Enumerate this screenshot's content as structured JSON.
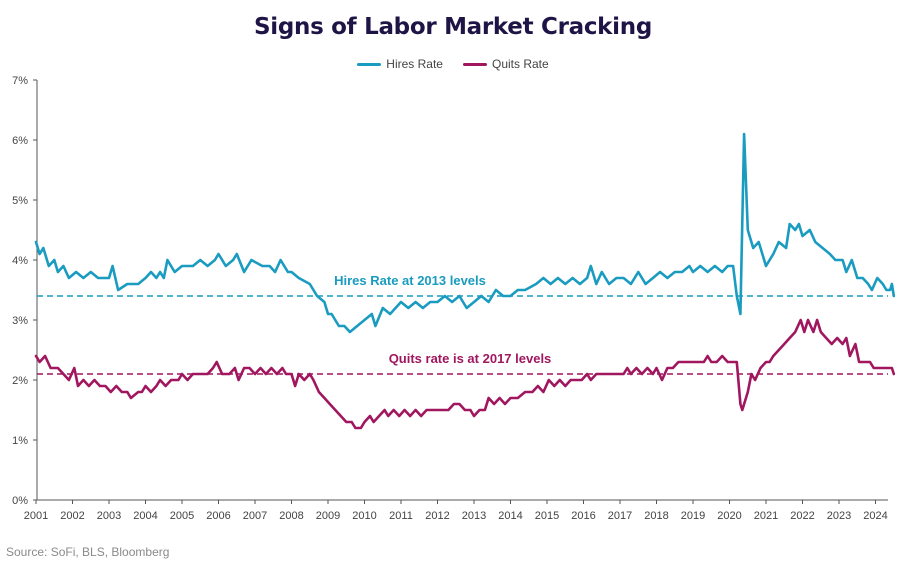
{
  "title": "Signs of Labor Market Cracking",
  "source": "Source: SoFi, BLS, Bloomberg",
  "colors": {
    "hires": "#1a9bc0",
    "quits": "#a0175f",
    "axis": "#555555"
  },
  "chart_data": {
    "type": "line",
    "title": "Signs of Labor Market Cracking",
    "xlabel": "",
    "ylabel": "",
    "ylim": [
      0,
      7
    ],
    "xlim": [
      2001,
      2024.5
    ],
    "y_ticks": [
      "0%",
      "1%",
      "2%",
      "3%",
      "4%",
      "5%",
      "6%",
      "7%"
    ],
    "x_ticks": [
      "2001",
      "2002",
      "2003",
      "2004",
      "2005",
      "2006",
      "2007",
      "2008",
      "2009",
      "2010",
      "2011",
      "2012",
      "2013",
      "2014",
      "2015",
      "2016",
      "2017",
      "2018",
      "2019",
      "2020",
      "2021",
      "2022",
      "2023",
      "2024"
    ],
    "grid": false,
    "legend": "top-center",
    "series": [
      {
        "name": "Hires Rate",
        "color": "#1a9bc0",
        "points": [
          [
            2001.0,
            4.3
          ],
          [
            2001.1,
            4.1
          ],
          [
            2001.2,
            4.2
          ],
          [
            2001.35,
            3.9
          ],
          [
            2001.5,
            4.0
          ],
          [
            2001.6,
            3.8
          ],
          [
            2001.75,
            3.9
          ],
          [
            2001.9,
            3.7
          ],
          [
            2002.1,
            3.8
          ],
          [
            2002.3,
            3.7
          ],
          [
            2002.5,
            3.8
          ],
          [
            2002.7,
            3.7
          ],
          [
            2003.0,
            3.7
          ],
          [
            2003.1,
            3.9
          ],
          [
            2003.25,
            3.5
          ],
          [
            2003.5,
            3.6
          ],
          [
            2003.8,
            3.6
          ],
          [
            2004.0,
            3.7
          ],
          [
            2004.15,
            3.8
          ],
          [
            2004.3,
            3.7
          ],
          [
            2004.4,
            3.8
          ],
          [
            2004.5,
            3.7
          ],
          [
            2004.6,
            4.0
          ],
          [
            2004.8,
            3.8
          ],
          [
            2005.0,
            3.9
          ],
          [
            2005.3,
            3.9
          ],
          [
            2005.5,
            4.0
          ],
          [
            2005.7,
            3.9
          ],
          [
            2005.9,
            4.0
          ],
          [
            2006.0,
            4.1
          ],
          [
            2006.2,
            3.9
          ],
          [
            2006.4,
            4.0
          ],
          [
            2006.5,
            4.1
          ],
          [
            2006.7,
            3.8
          ],
          [
            2006.9,
            4.0
          ],
          [
            2007.2,
            3.9
          ],
          [
            2007.4,
            3.9
          ],
          [
            2007.55,
            3.8
          ],
          [
            2007.7,
            4.0
          ],
          [
            2007.9,
            3.8
          ],
          [
            2008.0,
            3.8
          ],
          [
            2008.2,
            3.7
          ],
          [
            2008.5,
            3.6
          ],
          [
            2008.7,
            3.4
          ],
          [
            2008.9,
            3.3
          ],
          [
            2009.0,
            3.1
          ],
          [
            2009.1,
            3.1
          ],
          [
            2009.3,
            2.9
          ],
          [
            2009.45,
            2.9
          ],
          [
            2009.6,
            2.8
          ],
          [
            2009.8,
            2.9
          ],
          [
            2010.0,
            3.0
          ],
          [
            2010.2,
            3.1
          ],
          [
            2010.3,
            2.9
          ],
          [
            2010.5,
            3.2
          ],
          [
            2010.7,
            3.1
          ],
          [
            2011.0,
            3.3
          ],
          [
            2011.2,
            3.2
          ],
          [
            2011.4,
            3.3
          ],
          [
            2011.6,
            3.2
          ],
          [
            2011.8,
            3.3
          ],
          [
            2012.0,
            3.3
          ],
          [
            2012.2,
            3.4
          ],
          [
            2012.4,
            3.3
          ],
          [
            2012.6,
            3.4
          ],
          [
            2012.8,
            3.2
          ],
          [
            2013.0,
            3.3
          ],
          [
            2013.2,
            3.4
          ],
          [
            2013.4,
            3.3
          ],
          [
            2013.6,
            3.5
          ],
          [
            2013.8,
            3.4
          ],
          [
            2014.0,
            3.4
          ],
          [
            2014.2,
            3.5
          ],
          [
            2014.4,
            3.5
          ],
          [
            2014.7,
            3.6
          ],
          [
            2014.9,
            3.7
          ],
          [
            2015.1,
            3.6
          ],
          [
            2015.3,
            3.7
          ],
          [
            2015.5,
            3.6
          ],
          [
            2015.7,
            3.7
          ],
          [
            2015.9,
            3.6
          ],
          [
            2016.1,
            3.7
          ],
          [
            2016.2,
            3.9
          ],
          [
            2016.35,
            3.6
          ],
          [
            2016.5,
            3.8
          ],
          [
            2016.7,
            3.6
          ],
          [
            2016.9,
            3.7
          ],
          [
            2017.1,
            3.7
          ],
          [
            2017.3,
            3.6
          ],
          [
            2017.5,
            3.8
          ],
          [
            2017.7,
            3.6
          ],
          [
            2017.9,
            3.7
          ],
          [
            2018.1,
            3.8
          ],
          [
            2018.3,
            3.7
          ],
          [
            2018.5,
            3.8
          ],
          [
            2018.7,
            3.8
          ],
          [
            2018.9,
            3.9
          ],
          [
            2019.0,
            3.8
          ],
          [
            2019.2,
            3.9
          ],
          [
            2019.4,
            3.8
          ],
          [
            2019.6,
            3.9
          ],
          [
            2019.8,
            3.8
          ],
          [
            2019.95,
            3.9
          ],
          [
            2020.1,
            3.9
          ],
          [
            2020.2,
            3.4
          ],
          [
            2020.3,
            3.1
          ],
          [
            2020.4,
            6.1
          ],
          [
            2020.5,
            4.5
          ],
          [
            2020.65,
            4.2
          ],
          [
            2020.8,
            4.3
          ],
          [
            2021.0,
            3.9
          ],
          [
            2021.2,
            4.1
          ],
          [
            2021.35,
            4.3
          ],
          [
            2021.55,
            4.2
          ],
          [
            2021.65,
            4.6
          ],
          [
            2021.8,
            4.5
          ],
          [
            2021.9,
            4.6
          ],
          [
            2022.0,
            4.4
          ],
          [
            2022.2,
            4.5
          ],
          [
            2022.35,
            4.3
          ],
          [
            2022.55,
            4.2
          ],
          [
            2022.75,
            4.1
          ],
          [
            2022.9,
            4.0
          ],
          [
            2023.1,
            4.0
          ],
          [
            2023.2,
            3.8
          ],
          [
            2023.35,
            4.0
          ],
          [
            2023.5,
            3.7
          ],
          [
            2023.65,
            3.7
          ],
          [
            2023.8,
            3.6
          ],
          [
            2023.9,
            3.5
          ],
          [
            2024.05,
            3.7
          ],
          [
            2024.2,
            3.6
          ],
          [
            2024.3,
            3.5
          ],
          [
            2024.4,
            3.5
          ],
          [
            2024.45,
            3.6
          ],
          [
            2024.5,
            3.4
          ]
        ]
      },
      {
        "name": "Quits Rate",
        "color": "#a0175f",
        "points": [
          [
            2001.0,
            2.4
          ],
          [
            2001.1,
            2.3
          ],
          [
            2001.25,
            2.4
          ],
          [
            2001.4,
            2.2
          ],
          [
            2001.6,
            2.2
          ],
          [
            2001.75,
            2.1
          ],
          [
            2001.9,
            2.0
          ],
          [
            2002.05,
            2.2
          ],
          [
            2002.15,
            1.9
          ],
          [
            2002.3,
            2.0
          ],
          [
            2002.45,
            1.9
          ],
          [
            2002.6,
            2.0
          ],
          [
            2002.75,
            1.9
          ],
          [
            2002.9,
            1.9
          ],
          [
            2003.05,
            1.8
          ],
          [
            2003.2,
            1.9
          ],
          [
            2003.35,
            1.8
          ],
          [
            2003.5,
            1.8
          ],
          [
            2003.6,
            1.7
          ],
          [
            2003.8,
            1.8
          ],
          [
            2003.9,
            1.8
          ],
          [
            2004.0,
            1.9
          ],
          [
            2004.15,
            1.8
          ],
          [
            2004.3,
            1.9
          ],
          [
            2004.4,
            2.0
          ],
          [
            2004.55,
            1.9
          ],
          [
            2004.7,
            2.0
          ],
          [
            2004.9,
            2.0
          ],
          [
            2005.0,
            2.1
          ],
          [
            2005.15,
            2.0
          ],
          [
            2005.3,
            2.1
          ],
          [
            2005.5,
            2.1
          ],
          [
            2005.7,
            2.1
          ],
          [
            2005.85,
            2.2
          ],
          [
            2005.95,
            2.3
          ],
          [
            2006.1,
            2.1
          ],
          [
            2006.3,
            2.1
          ],
          [
            2006.45,
            2.2
          ],
          [
            2006.55,
            2.0
          ],
          [
            2006.7,
            2.2
          ],
          [
            2006.85,
            2.2
          ],
          [
            2007.0,
            2.1
          ],
          [
            2007.15,
            2.2
          ],
          [
            2007.3,
            2.1
          ],
          [
            2007.45,
            2.2
          ],
          [
            2007.6,
            2.1
          ],
          [
            2007.75,
            2.2
          ],
          [
            2007.85,
            2.1
          ],
          [
            2008.0,
            2.1
          ],
          [
            2008.1,
            1.9
          ],
          [
            2008.2,
            2.1
          ],
          [
            2008.35,
            2.0
          ],
          [
            2008.5,
            2.1
          ],
          [
            2008.6,
            2.0
          ],
          [
            2008.75,
            1.8
          ],
          [
            2008.9,
            1.7
          ],
          [
            2009.05,
            1.6
          ],
          [
            2009.2,
            1.5
          ],
          [
            2009.35,
            1.4
          ],
          [
            2009.5,
            1.3
          ],
          [
            2009.65,
            1.3
          ],
          [
            2009.75,
            1.2
          ],
          [
            2009.9,
            1.2
          ],
          [
            2010.0,
            1.3
          ],
          [
            2010.15,
            1.4
          ],
          [
            2010.25,
            1.3
          ],
          [
            2010.4,
            1.4
          ],
          [
            2010.55,
            1.5
          ],
          [
            2010.65,
            1.4
          ],
          [
            2010.8,
            1.5
          ],
          [
            2010.95,
            1.4
          ],
          [
            2011.1,
            1.5
          ],
          [
            2011.25,
            1.4
          ],
          [
            2011.4,
            1.5
          ],
          [
            2011.55,
            1.4
          ],
          [
            2011.7,
            1.5
          ],
          [
            2011.9,
            1.5
          ],
          [
            2012.1,
            1.5
          ],
          [
            2012.3,
            1.5
          ],
          [
            2012.45,
            1.6
          ],
          [
            2012.6,
            1.6
          ],
          [
            2012.75,
            1.5
          ],
          [
            2012.9,
            1.5
          ],
          [
            2013.0,
            1.4
          ],
          [
            2013.15,
            1.5
          ],
          [
            2013.3,
            1.5
          ],
          [
            2013.4,
            1.7
          ],
          [
            2013.55,
            1.6
          ],
          [
            2013.7,
            1.7
          ],
          [
            2013.85,
            1.6
          ],
          [
            2014.0,
            1.7
          ],
          [
            2014.2,
            1.7
          ],
          [
            2014.4,
            1.8
          ],
          [
            2014.6,
            1.8
          ],
          [
            2014.75,
            1.9
          ],
          [
            2014.9,
            1.8
          ],
          [
            2015.05,
            2.0
          ],
          [
            2015.2,
            1.9
          ],
          [
            2015.35,
            2.0
          ],
          [
            2015.5,
            1.9
          ],
          [
            2015.65,
            2.0
          ],
          [
            2015.8,
            2.0
          ],
          [
            2015.95,
            2.0
          ],
          [
            2016.1,
            2.1
          ],
          [
            2016.2,
            2.0
          ],
          [
            2016.35,
            2.1
          ],
          [
            2016.5,
            2.1
          ],
          [
            2016.7,
            2.1
          ],
          [
            2016.9,
            2.1
          ],
          [
            2017.1,
            2.1
          ],
          [
            2017.2,
            2.2
          ],
          [
            2017.3,
            2.1
          ],
          [
            2017.45,
            2.2
          ],
          [
            2017.6,
            2.1
          ],
          [
            2017.75,
            2.2
          ],
          [
            2017.9,
            2.1
          ],
          [
            2018.0,
            2.2
          ],
          [
            2018.15,
            2.0
          ],
          [
            2018.3,
            2.2
          ],
          [
            2018.45,
            2.2
          ],
          [
            2018.6,
            2.3
          ],
          [
            2018.8,
            2.3
          ],
          [
            2019.0,
            2.3
          ],
          [
            2019.15,
            2.3
          ],
          [
            2019.3,
            2.3
          ],
          [
            2019.4,
            2.4
          ],
          [
            2019.5,
            2.3
          ],
          [
            2019.65,
            2.3
          ],
          [
            2019.8,
            2.4
          ],
          [
            2019.95,
            2.3
          ],
          [
            2020.1,
            2.3
          ],
          [
            2020.2,
            2.3
          ],
          [
            2020.3,
            1.6
          ],
          [
            2020.35,
            1.5
          ],
          [
            2020.5,
            1.8
          ],
          [
            2020.6,
            2.1
          ],
          [
            2020.7,
            2.0
          ],
          [
            2020.85,
            2.2
          ],
          [
            2021.0,
            2.3
          ],
          [
            2021.1,
            2.3
          ],
          [
            2021.2,
            2.4
          ],
          [
            2021.35,
            2.5
          ],
          [
            2021.5,
            2.6
          ],
          [
            2021.65,
            2.7
          ],
          [
            2021.8,
            2.8
          ],
          [
            2021.95,
            3.0
          ],
          [
            2022.05,
            2.8
          ],
          [
            2022.15,
            3.0
          ],
          [
            2022.3,
            2.8
          ],
          [
            2022.4,
            3.0
          ],
          [
            2022.5,
            2.8
          ],
          [
            2022.65,
            2.7
          ],
          [
            2022.8,
            2.6
          ],
          [
            2022.95,
            2.7
          ],
          [
            2023.1,
            2.6
          ],
          [
            2023.2,
            2.7
          ],
          [
            2023.3,
            2.4
          ],
          [
            2023.45,
            2.6
          ],
          [
            2023.55,
            2.3
          ],
          [
            2023.7,
            2.3
          ],
          [
            2023.85,
            2.3
          ],
          [
            2023.95,
            2.2
          ],
          [
            2024.1,
            2.2
          ],
          [
            2024.3,
            2.2
          ],
          [
            2024.45,
            2.2
          ],
          [
            2024.5,
            2.1
          ]
        ]
      }
    ],
    "reference_lines": [
      {
        "label": "Hires Rate at 2013 levels",
        "value": 3.4,
        "color": "#1a9bc0",
        "style": "dashed"
      },
      {
        "label": "Quits rate is at 2017 levels",
        "value": 2.1,
        "color": "#a0175f",
        "style": "dashed"
      }
    ]
  }
}
